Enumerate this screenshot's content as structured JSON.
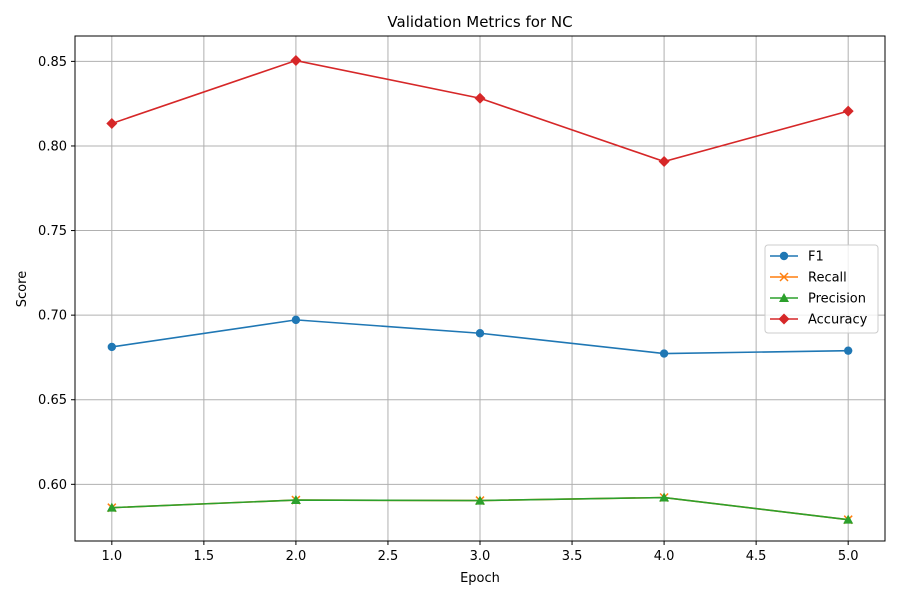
{
  "chart_data": {
    "type": "line",
    "title": "Validation Metrics for NC",
    "xlabel": "Epoch",
    "ylabel": "Score",
    "x": [
      1.0,
      2.0,
      3.0,
      4.0,
      5.0
    ],
    "xlim": [
      0.8,
      5.2
    ],
    "ylim": [
      0.5665,
      0.865
    ],
    "xticks": [
      1.0,
      1.5,
      2.0,
      2.5,
      3.0,
      3.5,
      4.0,
      4.5,
      5.0
    ],
    "xtick_labels": [
      "1.0",
      "1.5",
      "2.0",
      "2.5",
      "3.0",
      "3.5",
      "4.0",
      "4.5",
      "5.0"
    ],
    "yticks": [
      0.6,
      0.65,
      0.7,
      0.75,
      0.8,
      0.85
    ],
    "ytick_labels": [
      "0.60",
      "0.65",
      "0.70",
      "0.75",
      "0.80",
      "0.85"
    ],
    "grid": true,
    "legend_position": "center-right",
    "series": [
      {
        "name": "F1",
        "color": "#1f77b4",
        "marker": "circle",
        "values": [
          0.6812,
          0.6972,
          0.6893,
          0.6773,
          0.679
        ]
      },
      {
        "name": "Recall",
        "color": "#ff7f0e",
        "marker": "x",
        "values": [
          0.5862,
          0.5907,
          0.5904,
          0.5922,
          0.5791
        ]
      },
      {
        "name": "Precision",
        "color": "#2ca02c",
        "marker": "triangle",
        "values": [
          0.5862,
          0.5907,
          0.5904,
          0.5922,
          0.5791
        ]
      },
      {
        "name": "Accuracy",
        "color": "#d62728",
        "marker": "diamond",
        "values": [
          0.8133,
          0.8505,
          0.8282,
          0.7908,
          0.8206
        ]
      }
    ]
  }
}
